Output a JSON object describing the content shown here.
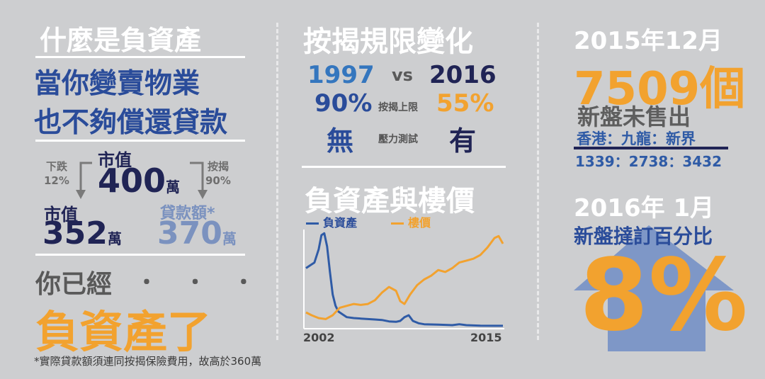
{
  "left": {
    "title": "什麼是負資產",
    "subtitle_line1": "當你變賣物業",
    "subtitle_line2": "也不夠償還貸款",
    "drop_label_1": "下跌",
    "drop_label_2": "12%",
    "market_label": "市值",
    "market_value": "400",
    "wan": "萬",
    "ltv_label_1": "按揭",
    "ltv_label_2": "90%",
    "market2_label": "市值",
    "market2_value": "352",
    "loan_label": "貸款額*",
    "loan_value": "370",
    "you_already": "你已經",
    "dots": "・ ・ ・",
    "negative_equity": "負資產了",
    "footnote": "*實際貸款額須連同按揭保險費用，故高於360萬"
  },
  "middle": {
    "title": "按揭規限變化",
    "year_a": "1997",
    "vs": "vs",
    "year_b": "2016",
    "pct_a": "90%",
    "cap_label": "按揭上限",
    "pct_b": "55%",
    "none": "無",
    "stress_label": "壓力測試",
    "has": "有",
    "chart_title": "負資產與樓價"
  },
  "right": {
    "date1": "2015年12月",
    "units": "7509個",
    "unsold_label": "新盤未售出",
    "regions": "香港：九龍：新界",
    "region_values": "1339：2738：3432",
    "date2": "2016年 1月",
    "rate_label": "新盤撻訂百分比",
    "rate_value": "8%"
  },
  "chart_data": {
    "type": "line",
    "title": "負資產與樓價",
    "x_ticks": [
      "2002",
      "2015"
    ],
    "xlim": [
      2002,
      2015.6
    ],
    "series": [
      {
        "name": "負資產",
        "color": "#2f5ba6",
        "x": [
          2001.6,
          2001.9,
          2002.2,
          2002.5,
          2002.7,
          2002.9,
          2003.1,
          2003.3,
          2003.5,
          2003.7,
          2003.9,
          2004.2,
          2004.5,
          2005,
          2005.5,
          2006,
          2006.5,
          2007,
          2007.5,
          2008,
          2008.3,
          2008.6,
          2008.9,
          2009.2,
          2009.6,
          2010,
          2011,
          2012,
          2012.5,
          2013,
          2014,
          2015,
          2015.6
        ],
        "values": [
          0.62,
          0.65,
          0.68,
          0.82,
          0.97,
          0.99,
          0.85,
          0.58,
          0.34,
          0.22,
          0.16,
          0.13,
          0.1,
          0.09,
          0.085,
          0.08,
          0.075,
          0.07,
          0.055,
          0.05,
          0.06,
          0.1,
          0.12,
          0.06,
          0.035,
          0.025,
          0.02,
          0.015,
          0.025,
          0.015,
          0.01,
          0.008,
          0.008
        ]
      },
      {
        "name": "樓價",
        "color": "#f2a22f",
        "x": [
          2001.6,
          2002,
          2002.5,
          2003,
          2003.5,
          2004,
          2004.5,
          2005,
          2005.5,
          2006,
          2006.5,
          2007,
          2007.5,
          2008,
          2008.3,
          2008.6,
          2009,
          2009.5,
          2010,
          2010.5,
          2011,
          2011.5,
          2012,
          2012.5,
          2013,
          2013.5,
          2014,
          2014.5,
          2015,
          2015.3,
          2015.6
        ],
        "values": [
          0.15,
          0.12,
          0.09,
          0.08,
          0.12,
          0.2,
          0.22,
          0.24,
          0.23,
          0.24,
          0.28,
          0.36,
          0.42,
          0.38,
          0.27,
          0.24,
          0.34,
          0.44,
          0.5,
          0.54,
          0.6,
          0.58,
          0.62,
          0.68,
          0.7,
          0.72,
          0.76,
          0.84,
          0.94,
          0.96,
          0.88
        ]
      }
    ]
  }
}
